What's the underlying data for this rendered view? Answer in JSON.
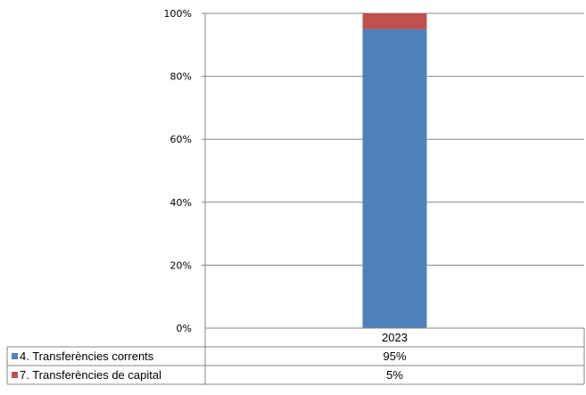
{
  "chart_data": {
    "type": "bar",
    "stacked": true,
    "percent_stacked": true,
    "categories": [
      "2023"
    ],
    "series": [
      {
        "name": "4. Transferències corrents",
        "values": [
          95
        ],
        "label": "95%",
        "color": "#4f81bd"
      },
      {
        "name": "7. Transferències de capital",
        "values": [
          5
        ],
        "label": "5%",
        "color": "#c0504d"
      }
    ],
    "yticks": [
      "0%",
      "20%",
      "40%",
      "60%",
      "80%",
      "100%"
    ],
    "ylim": [
      0,
      100
    ],
    "grid": true,
    "legend": "data-table-below"
  }
}
